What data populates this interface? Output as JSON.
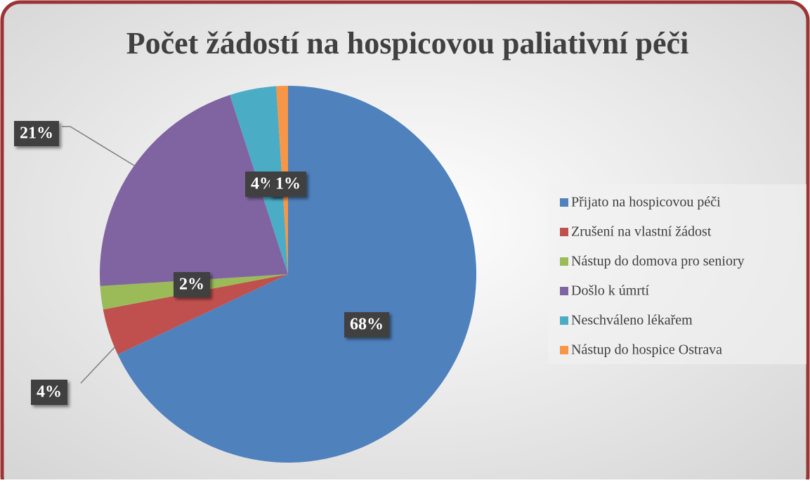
{
  "chart_data": {
    "type": "pie",
    "title": "Počet žádostí na hospicovou paliativní péči",
    "categories": [
      "Přijato na hospicovou péči",
      "Zrušení na vlastní žádost",
      "Nástup do domova pro seniory",
      "Došlo k úmrtí",
      "Neschváleno lékařem",
      "Nástup do hospice Ostrava"
    ],
    "values": [
      68,
      4,
      2,
      21,
      4,
      1
    ],
    "value_labels": [
      "68%",
      "4%",
      "2%",
      "21%",
      "4%",
      "1%"
    ],
    "colors": [
      "#4f81bd",
      "#c0504d",
      "#9bbb59",
      "#8064a2",
      "#4bacc6",
      "#f79646"
    ],
    "legend": "right"
  }
}
